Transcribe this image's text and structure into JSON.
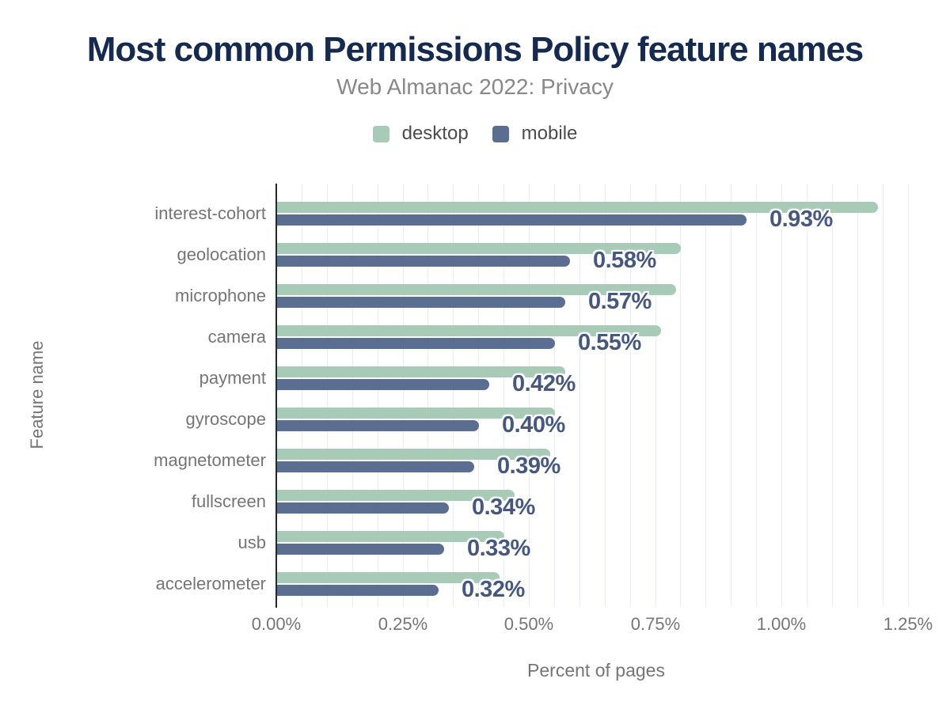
{
  "header": {
    "title": "Most common Permissions Policy feature names",
    "subtitle": "Web Almanac 2022: Privacy"
  },
  "chart_data": {
    "type": "bar",
    "orientation": "horizontal",
    "title": "Most common Permissions Policy feature names",
    "subtitle": "Web Almanac 2022: Privacy",
    "xlabel": "Percent of pages",
    "ylabel": "Feature name",
    "xlim": [
      0,
      1.25
    ],
    "x_tick_step": 0.25,
    "grid_minor_step": 0.05,
    "grid": true,
    "legend_position": "top",
    "x_ticks": [
      "0.00%",
      "0.25%",
      "0.50%",
      "0.75%",
      "1.00%",
      "1.25%"
    ],
    "categories": [
      "interest-cohort",
      "geolocation",
      "microphone",
      "camera",
      "payment",
      "gyroscope",
      "magnetometer",
      "fullscreen",
      "usb",
      "accelerometer"
    ],
    "series": [
      {
        "name": "desktop",
        "color": "#a8cbb7",
        "values": [
          1.19,
          0.8,
          0.79,
          0.76,
          0.57,
          0.55,
          0.54,
          0.47,
          0.45,
          0.44
        ]
      },
      {
        "name": "mobile",
        "color": "#5b6e91",
        "values": [
          0.93,
          0.58,
          0.57,
          0.55,
          0.42,
          0.4,
          0.39,
          0.34,
          0.33,
          0.32
        ]
      }
    ],
    "data_labels": [
      "0.93%",
      "0.58%",
      "0.57%",
      "0.55%",
      "0.42%",
      "0.40%",
      "0.39%",
      "0.34%",
      "0.33%",
      "0.32%"
    ],
    "label_series": "mobile"
  },
  "colors": {
    "title": "#152a4e",
    "subtitle": "#888888",
    "legend_text": "#4c4c4c",
    "axis_text": "#757575",
    "data_label": "#46587e",
    "gridline": "#e9edf1",
    "axis_line": "#23272e",
    "desktop": "#a8cbb7",
    "mobile": "#5b6e91"
  }
}
